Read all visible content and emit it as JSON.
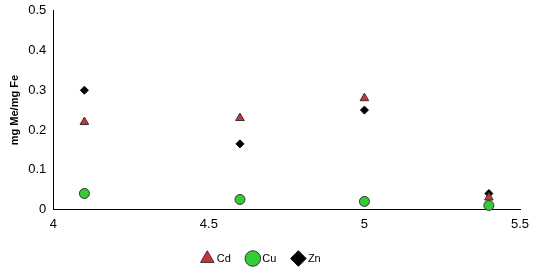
{
  "chart_data": {
    "type": "scatter",
    "y_label": "mg Me/mg Fe",
    "xlim": [
      4,
      5.5
    ],
    "xticks": [
      4,
      4.5,
      5,
      5.5
    ],
    "ylim": [
      0,
      0.5
    ],
    "yticks": [
      0,
      0.1,
      0.2,
      0.3,
      0.4,
      0.5
    ],
    "grid": false,
    "legend": "bottom",
    "series": [
      {
        "name": "Cd",
        "color": "#cc3333",
        "marker": "triangle",
        "x": [
          4.1,
          4.6,
          5.0,
          5.4
        ],
        "values": [
          0.22,
          0.23,
          0.28,
          0.03
        ]
      },
      {
        "name": "Cu",
        "color": "#33cc33",
        "marker": "circle",
        "x": [
          4.1,
          4.6,
          5.0,
          5.4
        ],
        "values": [
          0.04,
          0.025,
          0.02,
          0.01
        ]
      },
      {
        "name": "Zn",
        "color": "#000000",
        "marker": "diamond",
        "x": [
          4.1,
          4.6,
          5.0,
          5.4
        ],
        "values": [
          0.3,
          0.165,
          0.25,
          0.04
        ]
      }
    ]
  }
}
